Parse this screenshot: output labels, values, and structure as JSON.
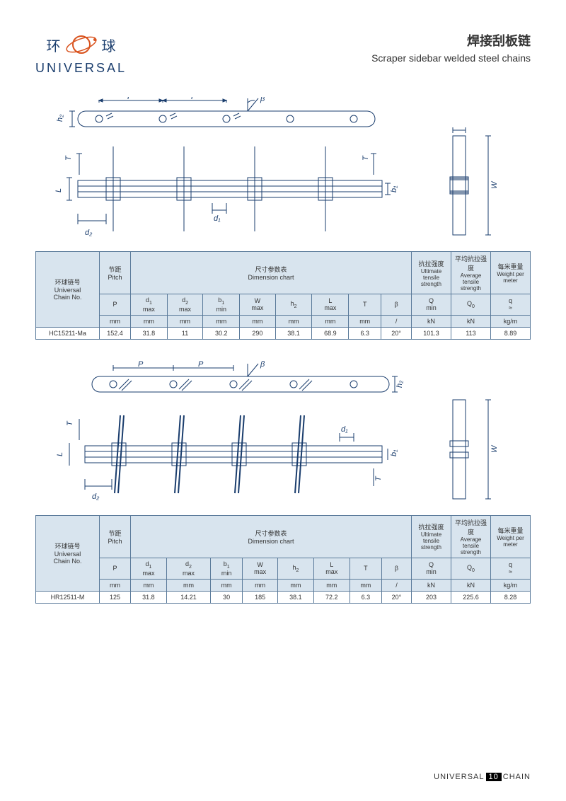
{
  "logo": {
    "cn_l": "环",
    "cn_r": "球",
    "en": "UNIVERSAL",
    "color": "#1a3d6d",
    "orbit": "#d9531e"
  },
  "title": {
    "cn": "焊接刮板链",
    "en": "Scraper sidebar welded steel chains"
  },
  "table_header": {
    "chain_no_cn": "环球链号",
    "chain_no_en": "Universal",
    "chain_no_en2": "Chain  No.",
    "pitch_cn": "节距",
    "pitch_en": "Pitch",
    "dim_cn": "尺寸参数表",
    "dim_en": "Dimension chart",
    "uts_cn": "抗拉强度",
    "uts_en": "Ultimate tensile strength",
    "ats_cn": "平均抗拉强度",
    "ats_en": "Average tensile strength",
    "wt_cn": "每米重量",
    "wt_en": "Weight per meter",
    "P": "P",
    "d1": "d",
    "d1s": "1",
    "d2": "d",
    "d2s": "2",
    "b1": "b",
    "b1s": "1",
    "W": "W",
    "h2": "h",
    "h2s": "2",
    "L": "L",
    "T": "T",
    "beta": "β",
    "Q": "Q",
    "Q0": "Q",
    "Q0s": "0",
    "q": "q",
    "max": "max",
    "min": "min",
    "approx": "≈",
    "slash": "/",
    "mm": "mm",
    "kN": "kN",
    "kgm": "kg/m"
  },
  "table1": {
    "chain": "HC15211-Ma",
    "P": "152.4",
    "d1": "31.8",
    "d2": "11",
    "b1": "30.2",
    "W": "290",
    "h2": "38.1",
    "L": "68.9",
    "T": "6.3",
    "beta": "20°",
    "Q": "101.3",
    "Q0": "113",
    "q": "8.89"
  },
  "table2": {
    "chain": "HR12511-M",
    "P": "125",
    "d1": "31.8",
    "d2": "14.21",
    "b1": "30",
    "W": "185",
    "h2": "38.1",
    "L": "72.2",
    "T": "6.3",
    "beta": "20°",
    "Q": "203",
    "Q0": "225.6",
    "q": "8.28"
  },
  "diagram": {
    "stroke": "#1a3d6d",
    "labels": {
      "P": "P",
      "beta": "β",
      "h2": "h₂",
      "T": "T",
      "L": "L",
      "d1": "d₁",
      "d2": "d₂",
      "b1": "b₁",
      "W": "W"
    }
  },
  "footer": {
    "brand": "UNIVERSAL",
    "page": "10",
    "suffix": "CHAIN"
  }
}
